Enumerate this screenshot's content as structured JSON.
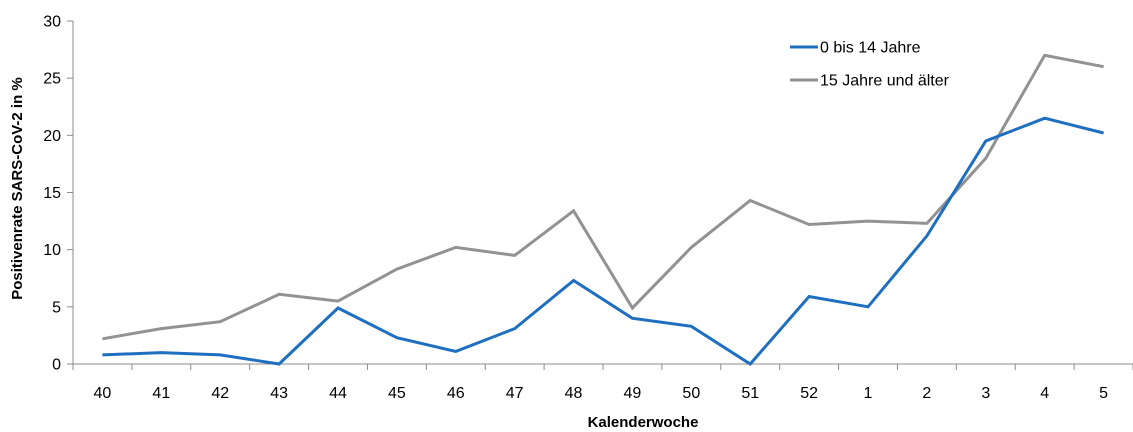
{
  "chart_data": {
    "type": "line",
    "title": "",
    "xlabel": "Kalenderwoche",
    "ylabel": "Positivenrate SARS-CoV-2 in %",
    "categories": [
      "40",
      "41",
      "42",
      "43",
      "44",
      "45",
      "46",
      "47",
      "48",
      "49",
      "50",
      "51",
      "52",
      "1",
      "2",
      "3",
      "4",
      "5"
    ],
    "ylim": [
      0,
      30
    ],
    "yticks": [
      "0",
      "5",
      "10",
      "15",
      "20",
      "25",
      "30"
    ],
    "grid": false,
    "legend_position": "top-right",
    "series": [
      {
        "name": "0 bis 14 Jahre",
        "color": "#1f6fc1",
        "values": [
          0.8,
          1.0,
          0.8,
          0.0,
          4.9,
          2.3,
          1.1,
          3.1,
          7.3,
          4.0,
          3.3,
          0.0,
          5.9,
          5.0,
          11.2,
          19.5,
          21.5,
          20.2
        ]
      },
      {
        "name": "15 Jahre und älter",
        "color": "#929292",
        "values": [
          2.2,
          3.1,
          3.7,
          6.1,
          5.5,
          8.3,
          10.2,
          9.5,
          13.4,
          4.9,
          10.2,
          14.3,
          12.2,
          12.5,
          12.3,
          18.0,
          27.0,
          26.0
        ]
      }
    ]
  }
}
